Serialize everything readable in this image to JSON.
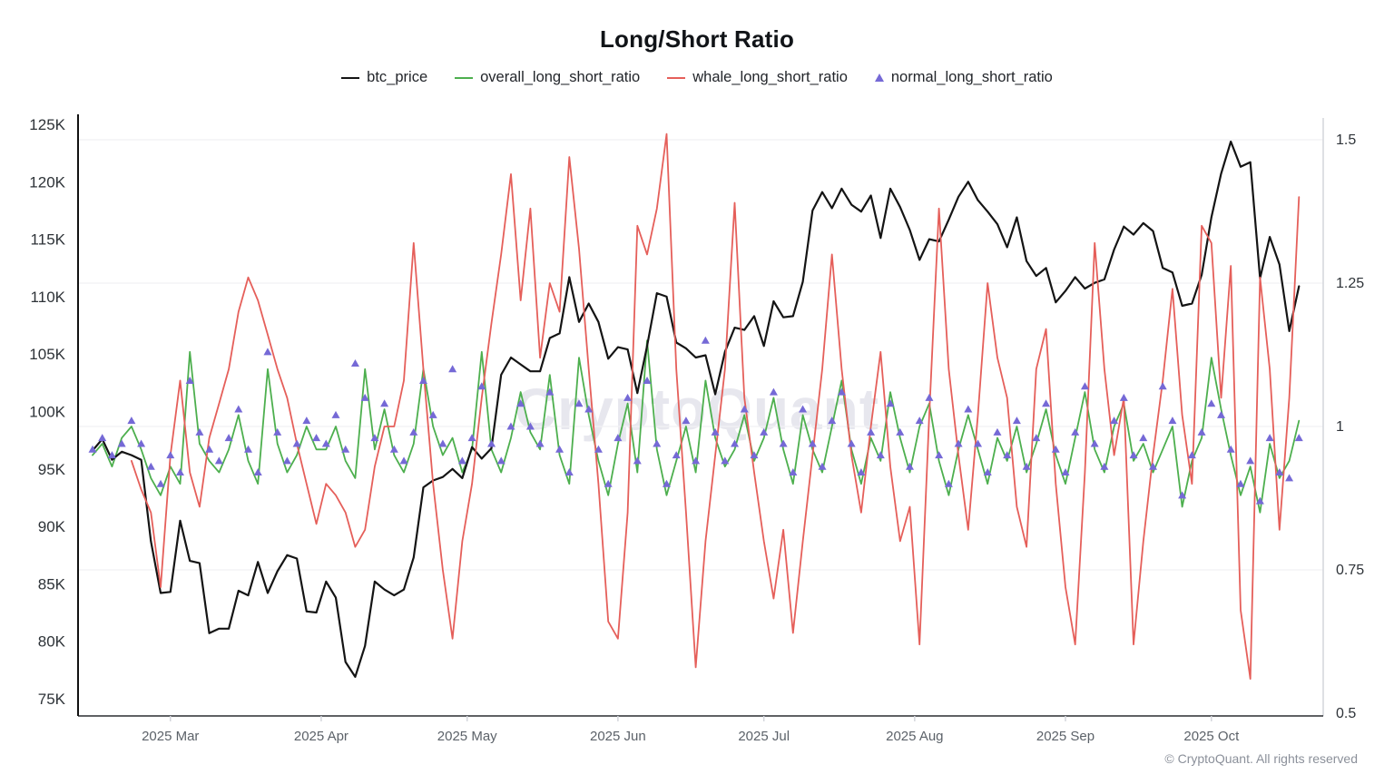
{
  "title": "Long/Short Ratio",
  "watermark": "CryptoQuant",
  "footer": "© CryptoQuant. All rights reserved",
  "legend": [
    {
      "label": "btc_price",
      "color": "#141414",
      "marker": "line"
    },
    {
      "label": "overall_long_short_ratio",
      "color": "#4daf4e",
      "marker": "line"
    },
    {
      "label": "whale_long_short_ratio",
      "color": "#e55f5a",
      "marker": "line"
    },
    {
      "label": "normal_long_short_ratio",
      "color": "#7569d6",
      "marker": "triangle"
    }
  ],
  "chart_data": {
    "type": "line",
    "grid": true,
    "legend_position": "top",
    "left_axis": {
      "unit": "USD (K)",
      "range": [
        75,
        125.6
      ],
      "ticks": [
        {
          "label": "125K",
          "v": 125
        },
        {
          "label": "120K",
          "v": 120
        },
        {
          "label": "115K",
          "v": 115
        },
        {
          "label": "110K",
          "v": 110
        },
        {
          "label": "105K",
          "v": 105
        },
        {
          "label": "100K",
          "v": 100
        },
        {
          "label": "95K",
          "v": 95
        },
        {
          "label": "90K",
          "v": 90
        },
        {
          "label": "85K",
          "v": 85
        },
        {
          "label": "80K",
          "v": 80
        },
        {
          "label": "75K",
          "v": 75
        }
      ]
    },
    "right_axis": {
      "unit": "ratio",
      "range": [
        0.5,
        1.52
      ],
      "ticks": [
        {
          "label": "1.5",
          "v": 1.5
        },
        {
          "label": "1.25",
          "v": 1.25
        },
        {
          "label": "1",
          "v": 1
        },
        {
          "label": "0.75",
          "v": 0.75
        },
        {
          "label": "0.5",
          "v": 0.5
        }
      ]
    },
    "x_axis": {
      "start_date": "2025-02-13",
      "step_days": 2,
      "month_ticks": [
        {
          "label": "2025 Mar",
          "day": 16
        },
        {
          "label": "2025 Apr",
          "day": 47
        },
        {
          "label": "2025 May",
          "day": 77
        },
        {
          "label": "2025 Jun",
          "day": 108
        },
        {
          "label": "2025 Jul",
          "day": 138
        },
        {
          "label": "2025 Aug",
          "day": 169
        },
        {
          "label": "2025 Sep",
          "day": 200
        },
        {
          "label": "2025 Oct",
          "day": 230
        }
      ]
    },
    "series": [
      {
        "name": "btc_price",
        "axis": "left",
        "style": "line",
        "color": "#141414",
        "width": 2.2,
        "values": [
          96.6,
          97.6,
          95.8,
          96.5,
          96.2,
          95.8,
          88.7,
          84.2,
          84.3,
          90.5,
          87.0,
          86.8,
          80.7,
          81.1,
          81.1,
          84.4,
          84.0,
          86.9,
          84.2,
          86.1,
          87.5,
          87.2,
          82.6,
          82.5,
          85.2,
          83.8,
          78.2,
          76.9,
          79.6,
          85.2,
          84.5,
          84.0,
          84.5,
          87.3,
          93.4,
          94.0,
          94.3,
          95.0,
          94.2,
          96.9,
          95.9,
          96.8,
          103.2,
          104.7,
          104.1,
          103.5,
          103.5,
          106.4,
          106.8,
          111.7,
          107.8,
          109.4,
          107.8,
          104.6,
          105.6,
          105.4,
          101.6,
          105.7,
          110.3,
          110.0,
          106.0,
          105.5,
          104.7,
          104.9,
          101.5,
          105.2,
          107.3,
          107.1,
          108.3,
          105.7,
          109.6,
          108.2,
          108.3,
          111.3,
          117.5,
          119.1,
          117.7,
          119.4,
          118.0,
          117.4,
          118.8,
          115.1,
          119.4,
          117.8,
          115.8,
          113.2,
          115.0,
          114.8,
          116.7,
          118.7,
          120.0,
          118.4,
          117.4,
          116.3,
          114.3,
          116.9,
          113.1,
          111.8,
          112.5,
          109.5,
          110.5,
          111.7,
          110.7,
          111.2,
          111.5,
          114.1,
          116.1,
          115.4,
          116.4,
          115.7,
          112.5,
          112.1,
          109.2,
          109.4,
          111.9,
          116.9,
          120.7,
          123.5,
          121.3,
          121.7,
          111.6,
          115.2,
          112.8,
          107.0,
          110.9
        ]
      },
      {
        "name": "overall_long_short_ratio",
        "axis": "right",
        "style": "line",
        "color": "#4daf4e",
        "width": 1.8,
        "values": [
          0.95,
          0.97,
          0.93,
          0.98,
          1.0,
          0.96,
          0.91,
          0.88,
          0.93,
          0.9,
          1.13,
          0.97,
          0.94,
          0.92,
          0.96,
          1.02,
          0.94,
          0.9,
          1.1,
          0.97,
          0.92,
          0.95,
          1.0,
          0.96,
          0.96,
          1.0,
          0.94,
          0.91,
          1.1,
          0.96,
          1.03,
          0.95,
          0.92,
          0.97,
          1.1,
          1.0,
          0.95,
          0.98,
          0.92,
          0.96,
          1.13,
          0.96,
          0.92,
          0.98,
          1.06,
          0.99,
          0.96,
          1.09,
          0.95,
          0.9,
          1.12,
          1.02,
          0.94,
          0.88,
          0.97,
          1.04,
          0.92,
          1.15,
          0.96,
          0.88,
          0.94,
          1.0,
          0.92,
          1.08,
          0.98,
          0.93,
          0.96,
          1.02,
          0.94,
          0.98,
          1.05,
          0.96,
          0.9,
          1.02,
          0.96,
          0.92,
          1.0,
          1.08,
          0.96,
          0.9,
          0.98,
          0.94,
          1.06,
          0.98,
          0.92,
          1.0,
          1.04,
          0.94,
          0.88,
          0.96,
          1.02,
          0.96,
          0.9,
          0.98,
          0.94,
          1.0,
          0.92,
          0.97,
          1.03,
          0.95,
          0.9,
          0.98,
          1.06,
          0.96,
          0.92,
          1.0,
          1.04,
          0.94,
          0.97,
          0.92,
          0.96,
          1.0,
          0.86,
          0.94,
          0.98,
          1.12,
          1.03,
          0.95,
          0.88,
          0.93,
          0.85,
          0.97,
          0.91,
          0.94,
          1.01
        ]
      },
      {
        "name": "whale_long_short_ratio",
        "axis": "right",
        "style": "line",
        "color": "#e55f5a",
        "width": 1.8,
        "values": [
          null,
          null,
          null,
          null,
          0.94,
          0.89,
          0.85,
          0.72,
          0.95,
          1.08,
          0.92,
          0.86,
          0.98,
          1.04,
          1.1,
          1.2,
          1.26,
          1.22,
          1.16,
          1.1,
          1.05,
          0.97,
          0.9,
          0.83,
          0.9,
          0.88,
          0.85,
          0.79,
          0.82,
          0.93,
          1.0,
          1.0,
          1.08,
          1.32,
          1.1,
          0.9,
          0.75,
          0.63,
          0.8,
          0.9,
          1.05,
          1.18,
          1.3,
          1.44,
          1.22,
          1.38,
          1.12,
          1.25,
          1.2,
          1.47,
          1.31,
          1.1,
          0.9,
          0.66,
          0.63,
          0.85,
          1.35,
          1.3,
          1.38,
          1.51,
          1.1,
          0.85,
          0.58,
          0.8,
          0.95,
          1.1,
          1.39,
          1.05,
          0.92,
          0.8,
          0.7,
          0.82,
          0.64,
          0.8,
          0.95,
          1.1,
          1.3,
          1.1,
          0.95,
          0.85,
          1.0,
          1.13,
          0.93,
          0.8,
          0.86,
          0.62,
          1.02,
          1.38,
          1.1,
          0.95,
          0.82,
          1.02,
          1.25,
          1.12,
          1.05,
          0.86,
          0.79,
          1.1,
          1.17,
          0.9,
          0.72,
          0.62,
          0.92,
          1.32,
          1.1,
          0.95,
          1.05,
          0.62,
          0.8,
          0.95,
          1.08,
          1.24,
          1.02,
          0.9,
          1.35,
          1.32,
          1.05,
          1.28,
          0.68,
          0.56,
          1.26,
          1.1,
          0.82,
          1.05,
          1.4
        ]
      },
      {
        "name": "normal_long_short_ratio",
        "axis": "right",
        "style": "triangle",
        "color": "#7569d6",
        "values": [
          0.96,
          0.98,
          0.95,
          0.97,
          1.01,
          0.97,
          0.93,
          0.9,
          0.95,
          0.92,
          1.08,
          0.99,
          0.96,
          0.94,
          0.98,
          1.03,
          0.96,
          0.92,
          1.13,
          0.99,
          0.94,
          0.97,
          1.01,
          0.98,
          0.97,
          1.02,
          0.96,
          1.11,
          1.05,
          0.98,
          1.04,
          0.96,
          0.94,
          0.99,
          1.08,
          1.02,
          0.97,
          1.1,
          0.94,
          0.98,
          1.07,
          0.97,
          0.94,
          1.0,
          1.04,
          1.0,
          0.97,
          1.06,
          0.96,
          0.92,
          1.04,
          1.03,
          0.96,
          0.9,
          0.98,
          1.05,
          0.94,
          1.08,
          0.97,
          0.9,
          0.95,
          1.01,
          0.94,
          1.15,
          0.99,
          0.94,
          0.97,
          1.03,
          0.95,
          0.99,
          1.06,
          0.97,
          0.92,
          1.03,
          0.97,
          0.93,
          1.01,
          1.06,
          0.97,
          0.92,
          0.99,
          0.95,
          1.04,
          0.99,
          0.93,
          1.01,
          1.05,
          0.95,
          0.9,
          0.97,
          1.03,
          0.97,
          0.92,
          0.99,
          0.95,
          1.01,
          0.93,
          0.98,
          1.04,
          0.96,
          0.92,
          0.99,
          1.07,
          0.97,
          0.93,
          1.01,
          1.05,
          0.95,
          0.98,
          0.93,
          1.07,
          1.01,
          0.88,
          0.95,
          0.99,
          1.04,
          1.02,
          0.96,
          0.9,
          0.94,
          0.87,
          0.98,
          0.92,
          0.91,
          0.98
        ]
      }
    ],
    "colors": {
      "btc": "#141414",
      "overall": "#4daf4e",
      "whale": "#e55f5a",
      "normal": "#7569d6",
      "grid": "#f1f1f4",
      "axis_dark": "#2a2d31",
      "axis_light": "#d4d6dc",
      "watermark": "#e7e7ee"
    }
  }
}
